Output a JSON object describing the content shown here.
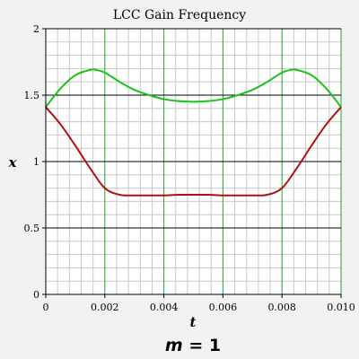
{
  "chart_data": {
    "type": "line",
    "title": "LCC Gain Frequency",
    "xlabel": "t",
    "ylabel": "x",
    "caption_var": "m",
    "caption_rest": " = 1",
    "xlim": [
      0,
      0.01
    ],
    "ylim": [
      0,
      2
    ],
    "x_ticks": [
      0,
      0.002,
      0.004,
      0.006,
      0.008,
      0.01
    ],
    "x_tick_labels": [
      "0",
      "0.002",
      "0.004",
      "0.006",
      "0.008",
      "0.010"
    ],
    "y_ticks": [
      0,
      0.5,
      1,
      1.5,
      2
    ],
    "y_tick_labels": [
      "0",
      "0.5",
      "1",
      "1.5",
      "2"
    ],
    "grid": true,
    "colors": {
      "background": "#f2f2f2",
      "plot_bg": "#ffffff",
      "major_grid_vertical": "#26a326",
      "major_grid_horizontal": "#000000",
      "minor_grid": "#c8c8c8"
    },
    "series": [
      {
        "color": "#19c219",
        "x": [
          0,
          0.0005,
          0.001,
          0.0015,
          0.0017,
          0.002,
          0.0025,
          0.003,
          0.0035,
          0.004,
          0.0045,
          0.005,
          0.0055,
          0.006,
          0.0065,
          0.007,
          0.0075,
          0.008,
          0.0083,
          0.0085,
          0.009,
          0.0095,
          0.01
        ],
        "y": [
          1.41,
          1.55,
          1.65,
          1.69,
          1.69,
          1.67,
          1.6,
          1.54,
          1.5,
          1.47,
          1.455,
          1.45,
          1.455,
          1.47,
          1.5,
          1.54,
          1.6,
          1.67,
          1.69,
          1.69,
          1.65,
          1.55,
          1.41
        ]
      },
      {
        "color": "#b01010",
        "x": [
          0,
          0.0005,
          0.001,
          0.0015,
          0.002,
          0.0025,
          0.003,
          0.0035,
          0.004,
          0.0045,
          0.005,
          0.0055,
          0.006,
          0.0065,
          0.007,
          0.0075,
          0.008,
          0.0085,
          0.009,
          0.0095,
          0.01
        ],
        "y": [
          1.41,
          1.28,
          1.12,
          0.95,
          0.8,
          0.75,
          0.745,
          0.745,
          0.745,
          0.75,
          0.75,
          0.75,
          0.745,
          0.745,
          0.745,
          0.75,
          0.8,
          0.95,
          1.12,
          1.28,
          1.41
        ]
      }
    ]
  }
}
